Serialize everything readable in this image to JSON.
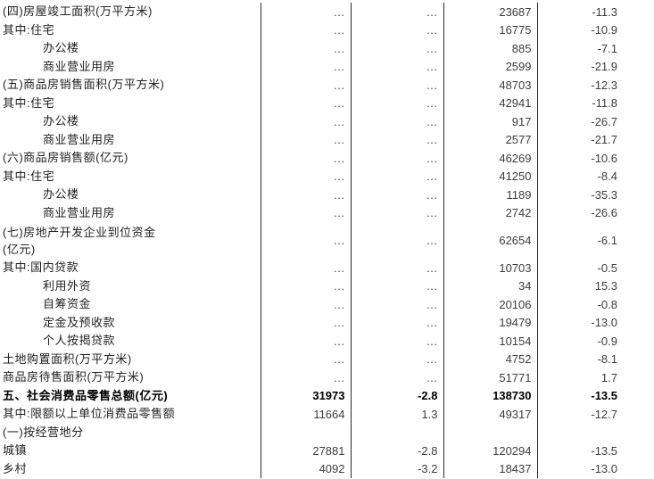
{
  "page": {
    "background": "#ffffff"
  },
  "colors": {
    "label_text": "#222222",
    "value_text": "#3d3d3d",
    "bold_text": "#000000",
    "grid_line": "#2b2b2b"
  },
  "table": {
    "ellipsis": "…",
    "rows": [
      {
        "label": "(四)房屋竣工面积(万平方米)",
        "indent": "none",
        "bold": false,
        "tall": false,
        "values": [
          "…",
          "…",
          "23687",
          "-11.3"
        ]
      },
      {
        "label": "其中:住宅",
        "indent": "none",
        "bold": false,
        "tall": false,
        "values": [
          "…",
          "…",
          "16775",
          "-10.9"
        ]
      },
      {
        "label": "办公楼",
        "indent": "sub",
        "bold": false,
        "tall": false,
        "values": [
          "…",
          "…",
          "885",
          "-7.1"
        ]
      },
      {
        "label": "商业营业用房",
        "indent": "sub",
        "bold": false,
        "tall": false,
        "values": [
          "…",
          "…",
          "2599",
          "-21.9"
        ]
      },
      {
        "label": "(五)商品房销售面积(万平方米)",
        "indent": "none",
        "bold": false,
        "tall": false,
        "values": [
          "…",
          "…",
          "48703",
          "-12.3"
        ]
      },
      {
        "label": "其中:住宅",
        "indent": "none",
        "bold": false,
        "tall": false,
        "values": [
          "…",
          "…",
          "42941",
          "-11.8"
        ]
      },
      {
        "label": "办公楼",
        "indent": "sub",
        "bold": false,
        "tall": false,
        "values": [
          "…",
          "…",
          "917",
          "-26.7"
        ]
      },
      {
        "label": "商业营业用房",
        "indent": "sub",
        "bold": false,
        "tall": false,
        "values": [
          "…",
          "…",
          "2577",
          "-21.7"
        ]
      },
      {
        "label": "(六)商品房销售额(亿元)",
        "indent": "none",
        "bold": false,
        "tall": false,
        "values": [
          "…",
          "…",
          "46269",
          "-10.6"
        ]
      },
      {
        "label": "其中:住宅",
        "indent": "none",
        "bold": false,
        "tall": false,
        "values": [
          "…",
          "…",
          "41250",
          "-8.4"
        ]
      },
      {
        "label": "办公楼",
        "indent": "sub",
        "bold": false,
        "tall": false,
        "values": [
          "…",
          "…",
          "1189",
          "-35.3"
        ]
      },
      {
        "label": "商业营业用房",
        "indent": "sub",
        "bold": false,
        "tall": false,
        "values": [
          "…",
          "…",
          "2742",
          "-26.6"
        ]
      },
      {
        "label": "(七)房地产开发企业到位资金",
        "label_line2": "(亿元)",
        "indent": "none",
        "bold": false,
        "tall": true,
        "values": [
          "…",
          "…",
          "62654",
          "-6.1"
        ]
      },
      {
        "label": "其中:国内贷款",
        "indent": "none",
        "bold": false,
        "tall": false,
        "values": [
          "…",
          "…",
          "10703",
          "-0.5"
        ]
      },
      {
        "label": "利用外资",
        "indent": "sub",
        "bold": false,
        "tall": false,
        "values": [
          "…",
          "…",
          "34",
          "15.3"
        ]
      },
      {
        "label": "自筹资金",
        "indent": "sub",
        "bold": false,
        "tall": false,
        "values": [
          "…",
          "…",
          "20106",
          "-0.8"
        ]
      },
      {
        "label": "定金及预收款",
        "indent": "sub",
        "bold": false,
        "tall": false,
        "values": [
          "…",
          "…",
          "19479",
          "-13.0"
        ]
      },
      {
        "label": "个人按揭贷款",
        "indent": "sub",
        "bold": false,
        "tall": false,
        "values": [
          "…",
          "…",
          "10154",
          "-0.9"
        ]
      },
      {
        "label": "土地购置面积(万平方米)",
        "indent": "none",
        "bold": false,
        "tall": false,
        "values": [
          "…",
          "…",
          "4752",
          "-8.1"
        ]
      },
      {
        "label": "商品房待售面积(万平方米)",
        "indent": "none",
        "bold": false,
        "tall": false,
        "values": [
          "…",
          "…",
          "51771",
          "1.7"
        ]
      },
      {
        "label": "五、社会消费品零售总额(亿元)",
        "indent": "none",
        "bold": true,
        "tall": false,
        "values": [
          "31973",
          "-2.8",
          "138730",
          "-13.5"
        ]
      },
      {
        "label": "其中:限额以上单位消费品零售额",
        "indent": "none",
        "bold": false,
        "tall": false,
        "values": [
          "11664",
          "1.3",
          "49317",
          "-12.7"
        ]
      },
      {
        "label": "(一)按经营地分",
        "indent": "none",
        "bold": false,
        "tall": false,
        "values": [
          "",
          "",
          "",
          ""
        ]
      },
      {
        "label": "城镇",
        "indent": "none",
        "bold": false,
        "tall": false,
        "values": [
          "27881",
          "-2.8",
          "120294",
          "-13.5"
        ]
      },
      {
        "label": "乡村",
        "indent": "none",
        "bold": false,
        "tall": false,
        "values": [
          "4092",
          "-3.2",
          "18437",
          "-13.0"
        ]
      }
    ]
  }
}
